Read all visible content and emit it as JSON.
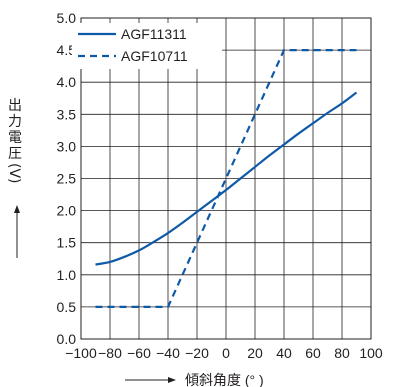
{
  "chart_data": {
    "type": "line",
    "xlabel": "傾斜角度 (° )",
    "ylabel": "出力電圧 (V)",
    "ylabel_chars": [
      "出",
      "力",
      "電",
      "圧"
    ],
    "ylabel_unit": "(V)",
    "xlim": [
      -100,
      100
    ],
    "ylim": [
      0.0,
      5.0
    ],
    "xticks": [
      -100,
      -80,
      -60,
      -40,
      -20,
      0,
      20,
      40,
      60,
      80,
      100
    ],
    "xtick_labels": [
      "−100",
      "−80",
      "−60",
      "−40",
      "−20",
      "0",
      "20",
      "40",
      "60",
      "80",
      "100"
    ],
    "yticks": [
      0.0,
      0.5,
      1.0,
      1.5,
      2.0,
      2.5,
      3.0,
      3.5,
      4.0,
      4.5,
      5.0
    ],
    "ytick_labels": [
      "0.0",
      "0.5",
      "1.0",
      "1.5",
      "2.0",
      "2.5",
      "3.0",
      "3.5",
      "4.0",
      "4.5",
      "5.0"
    ],
    "grid": true,
    "legend_position": "top-left",
    "line_color": "#0f5aa8",
    "series": [
      {
        "name": "AGF11311",
        "style": "solid",
        "x": [
          -90,
          -80,
          -70,
          -60,
          -50,
          -40,
          -30,
          -20,
          -10,
          0,
          10,
          20,
          30,
          40,
          50,
          60,
          70,
          80,
          90
        ],
        "y": [
          1.16,
          1.2,
          1.28,
          1.38,
          1.51,
          1.65,
          1.81,
          1.98,
          2.15,
          2.32,
          2.5,
          2.68,
          2.86,
          3.03,
          3.2,
          3.36,
          3.52,
          3.67,
          3.84
        ]
      },
      {
        "name": "AGF10711",
        "style": "dashed",
        "x": [
          -90,
          -45,
          -40,
          40,
          45,
          90
        ],
        "y": [
          0.5,
          0.5,
          0.5,
          4.5,
          4.5,
          4.5
        ]
      }
    ]
  }
}
